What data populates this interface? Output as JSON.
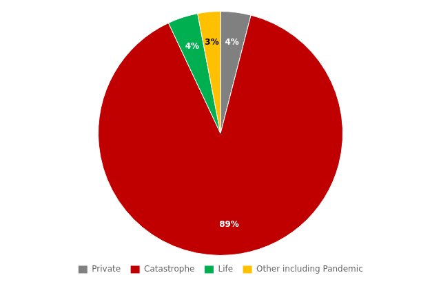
{
  "chart_data": {
    "type": "pie",
    "categories": [
      "Private",
      "Catastrophe",
      "Life",
      "Other including Pandemic"
    ],
    "values": [
      4,
      89,
      4,
      3
    ],
    "value_labels": [
      "4%",
      "89%",
      "4%",
      "3%"
    ],
    "colors": [
      "#808080",
      "#C00000",
      "#00B050",
      "#FFC000"
    ],
    "data_labels": true,
    "legend": "bottom"
  }
}
